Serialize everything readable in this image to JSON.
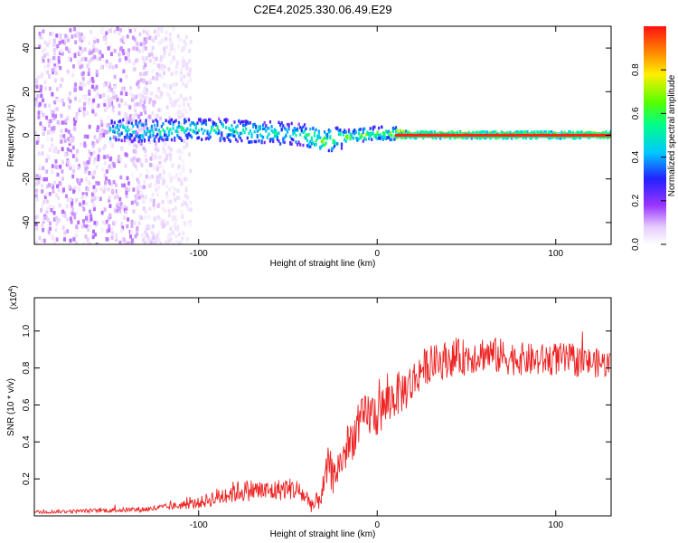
{
  "title": "C2E4.2025.330.06.49.E29",
  "chart_data": [
    {
      "type": "heatmap",
      "xlabel": "Height of straight line (km)",
      "ylabel": "Frequency (Hz)",
      "xlim": [
        -192,
        131
      ],
      "ylim": [
        -50,
        50
      ],
      "xticks": [
        {
          "v": -100,
          "label": "-100"
        },
        {
          "v": 0,
          "label": "0"
        },
        {
          "v": 100,
          "label": "100"
        }
      ],
      "yticks": [
        {
          "v": 40,
          "label": "40"
        },
        {
          "v": 20,
          "label": "20"
        },
        {
          "v": 0,
          "label": "0"
        },
        {
          "v": -20,
          "label": "-20"
        },
        {
          "v": -40,
          "label": "-40"
        }
      ],
      "colorbar": {
        "label": "Normalized spectral amplitude",
        "range": [
          0,
          1
        ],
        "ticks": [
          {
            "v": 0.0,
            "label": "0.0"
          },
          {
            "v": 0.2,
            "label": "0.2"
          },
          {
            "v": 0.4,
            "label": "0.4"
          },
          {
            "v": 0.6,
            "label": "0.6"
          },
          {
            "v": 0.8,
            "label": "0.8"
          }
        ]
      },
      "description_series": [
        {
          "name": "noise region",
          "x_range": [
            -192,
            -105
          ],
          "amplitude_range": [
            0.02,
            0.15
          ]
        },
        {
          "name": "signal band center (Hz)",
          "x": [
            -150,
            -120,
            -100,
            -80,
            -60,
            -40,
            -30,
            -20,
            0,
            20,
            60,
            100,
            131
          ],
          "values": [
            2,
            2,
            3,
            2,
            1,
            0,
            -3,
            -1,
            1,
            0,
            0,
            0,
            0
          ]
        }
      ]
    },
    {
      "type": "line",
      "xlabel": "Height of straight line (km)",
      "ylabel": "SNR (10 * v/v)",
      "yexp": "(x10",
      "yexp_power": "4",
      "yexp_close": ")",
      "xlim": [
        -192,
        131
      ],
      "ylim": [
        0,
        1.18
      ],
      "xticks": [
        {
          "v": -100,
          "label": "-100"
        },
        {
          "v": 0,
          "label": "0"
        },
        {
          "v": 100,
          "label": "100"
        }
      ],
      "yticks": [
        {
          "v": 0.2,
          "label": "0.2"
        },
        {
          "v": 0.4,
          "label": "0.4"
        },
        {
          "v": 0.6,
          "label": "0.6"
        },
        {
          "v": 0.8,
          "label": "0.8"
        },
        {
          "v": 1.0,
          "label": "1.0"
        }
      ],
      "series": [
        {
          "name": "SNR",
          "color": "#ee2222",
          "x": [
            -192,
            -170,
            -150,
            -130,
            -115,
            -100,
            -90,
            -80,
            -70,
            -60,
            -50,
            -45,
            -40,
            -35,
            -30,
            -27,
            -25,
            -20,
            -15,
            -10,
            -5,
            0,
            5,
            10,
            15,
            20,
            25,
            30,
            40,
            50,
            60,
            70,
            80,
            90,
            100,
            110,
            120,
            131
          ],
          "values": [
            0.02,
            0.025,
            0.03,
            0.035,
            0.05,
            0.07,
            0.1,
            0.13,
            0.14,
            0.13,
            0.15,
            0.14,
            0.1,
            0.05,
            0.15,
            0.3,
            0.2,
            0.3,
            0.4,
            0.5,
            0.55,
            0.55,
            0.6,
            0.65,
            0.68,
            0.72,
            0.8,
            0.82,
            0.85,
            0.86,
            0.88,
            0.86,
            0.85,
            0.84,
            0.85,
            0.84,
            0.83,
            0.82
          ],
          "noise_amplitude": [
            0.01,
            0.01,
            0.012,
            0.015,
            0.02,
            0.03,
            0.05,
            0.06,
            0.06,
            0.06,
            0.06,
            0.06,
            0.05,
            0.05,
            0.08,
            0.1,
            0.1,
            0.1,
            0.12,
            0.12,
            0.13,
            0.13,
            0.13,
            0.12,
            0.12,
            0.12,
            0.1,
            0.1,
            0.1,
            0.1,
            0.1,
            0.1,
            0.09,
            0.09,
            0.09,
            0.09,
            0.08,
            0.08
          ]
        }
      ]
    }
  ]
}
